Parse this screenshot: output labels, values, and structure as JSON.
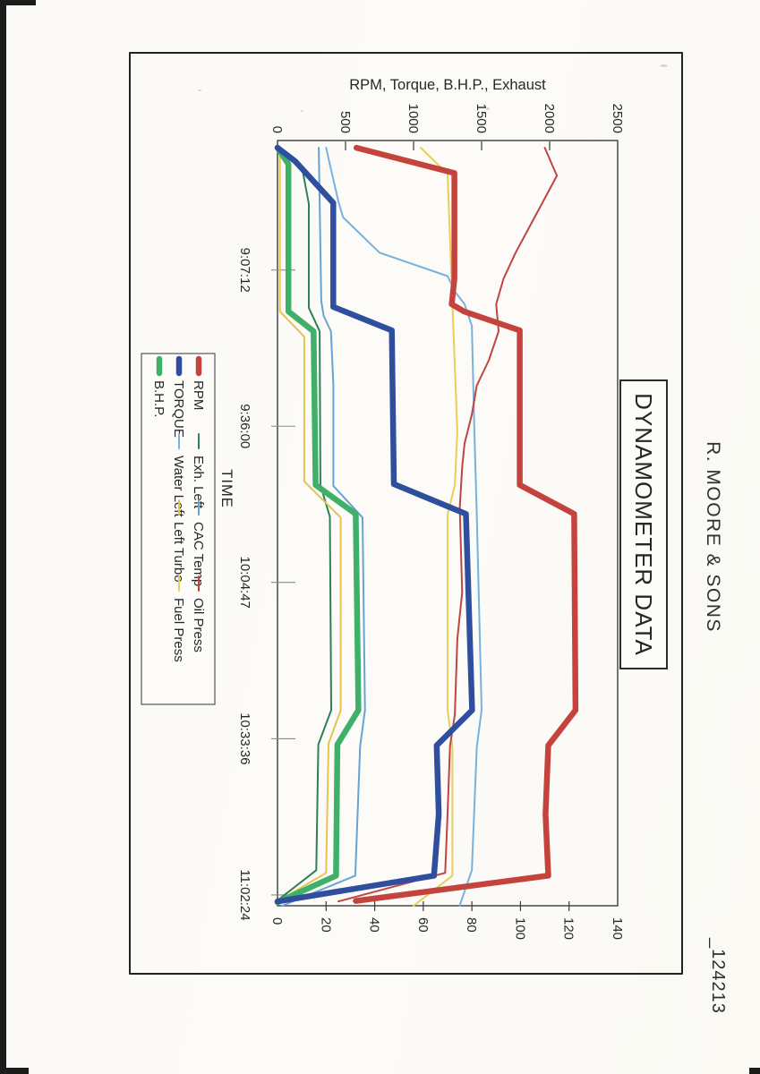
{
  "page": {
    "header": "R. MOORE & SONS",
    "doc_number": "_124213",
    "title": "DYNAMOMETER DATA"
  },
  "chart_data": {
    "type": "line",
    "title": "DYNAMOMETER DATA",
    "xlabel": "TIME",
    "ylabel_left": "RPM, Torque, B.H.P., Exhaust",
    "grid": false,
    "legend_position": "below",
    "x_domain": [
      31400,
      39863
    ],
    "x_ticks": [
      {
        "t": 32832,
        "label": "9:07:12"
      },
      {
        "t": 34560,
        "label": "9:36:00"
      },
      {
        "t": 36287,
        "label": "10:04:47"
      },
      {
        "t": 38016,
        "label": "10:33:36"
      },
      {
        "t": 39744,
        "label": "11:02:24"
      }
    ],
    "y_left": {
      "min": 0,
      "max": 2500,
      "ticks": [
        0,
        500,
        1000,
        1500,
        2000,
        2500
      ]
    },
    "y_right": {
      "min": 0,
      "max": 140,
      "ticks": [
        0,
        20,
        40,
        60,
        80,
        100,
        120,
        140
      ]
    },
    "legend_rows": [
      [
        "RPM",
        "Exh. Left",
        "CAC Temp",
        "Oil Press"
      ],
      [
        "TORQUE",
        "Water Left",
        "Left Turbo",
        "Fuel Press"
      ],
      [
        "B.H.P."
      ]
    ],
    "series": [
      {
        "label": "Exh. Left",
        "axis": "left",
        "color": "#2e8055",
        "width": 2,
        "points": [
          [
            31480,
            0
          ],
          [
            31700,
            180
          ],
          [
            32100,
            230
          ],
          [
            33250,
            230
          ],
          [
            33510,
            310
          ],
          [
            35210,
            315
          ],
          [
            35560,
            385
          ],
          [
            37700,
            395
          ],
          [
            38080,
            300
          ],
          [
            39470,
            285
          ],
          [
            39805,
            0
          ]
        ]
      },
      {
        "label": "CAC Temp",
        "axis": "right",
        "color": "#67a3d4",
        "width": 2,
        "points": [
          [
            31480,
            17
          ],
          [
            33180,
            18
          ],
          [
            33340,
            19
          ],
          [
            33510,
            22
          ],
          [
            34100,
            23
          ],
          [
            35220,
            23
          ],
          [
            35570,
            35
          ],
          [
            37700,
            36
          ],
          [
            38100,
            34
          ],
          [
            39530,
            32
          ],
          [
            39863,
            2
          ]
        ]
      },
      {
        "label": "Water Left",
        "axis": "right",
        "color": "#79b1da",
        "width": 2,
        "points": [
          [
            31480,
            20
          ],
          [
            32070,
            25
          ],
          [
            32250,
            27
          ],
          [
            32640,
            42
          ],
          [
            32900,
            70
          ],
          [
            33070,
            73
          ],
          [
            33210,
            77
          ],
          [
            33450,
            80
          ],
          [
            34600,
            81
          ],
          [
            35530,
            82
          ],
          [
            37700,
            84
          ],
          [
            38110,
            82
          ],
          [
            39470,
            80
          ],
          [
            39860,
            75
          ]
        ]
      },
      {
        "label": "Left Turbo",
        "axis": "right",
        "color": "#e5c44c",
        "width": 2,
        "points": [
          [
            31480,
            1
          ],
          [
            33290,
            1
          ],
          [
            33570,
            11
          ],
          [
            35170,
            11
          ],
          [
            35570,
            26
          ],
          [
            37700,
            26
          ],
          [
            38070,
            21
          ],
          [
            39500,
            20
          ],
          [
            39815,
            0
          ]
        ]
      },
      {
        "label": "Fuel Press",
        "axis": "right",
        "color": "#e9cf55",
        "width": 2,
        "points": [
          [
            31480,
            59
          ],
          [
            31770,
            70
          ],
          [
            33210,
            72
          ],
          [
            34620,
            74
          ],
          [
            35210,
            73
          ],
          [
            35540,
            70
          ],
          [
            37700,
            70
          ],
          [
            38110,
            72
          ],
          [
            39530,
            72
          ],
          [
            39863,
            56
          ]
        ]
      },
      {
        "label": "Oil Press",
        "axis": "right",
        "color": "#bf4540",
        "width": 2,
        "points": [
          [
            31480,
            110
          ],
          [
            31790,
            115
          ],
          [
            32640,
            98
          ],
          [
            32930,
            93
          ],
          [
            33210,
            90
          ],
          [
            33510,
            91
          ],
          [
            33830,
            87
          ],
          [
            34110,
            82
          ],
          [
            34430,
            80
          ],
          [
            34750,
            77
          ],
          [
            35010,
            76
          ],
          [
            35460,
            75
          ],
          [
            36400,
            76
          ],
          [
            36910,
            74
          ],
          [
            37750,
            73
          ],
          [
            38100,
            71
          ],
          [
            38840,
            70
          ],
          [
            39500,
            69
          ],
          [
            39815,
            25
          ]
        ]
      },
      {
        "label": "B.H.P.",
        "axis": "left",
        "color": "#3eb06a",
        "width": 6.5,
        "points": [
          [
            31480,
            0
          ],
          [
            31660,
            80
          ],
          [
            33290,
            80
          ],
          [
            33510,
            265
          ],
          [
            35210,
            280
          ],
          [
            35530,
            575
          ],
          [
            37700,
            595
          ],
          [
            38080,
            440
          ],
          [
            39530,
            430
          ],
          [
            39825,
            0
          ]
        ]
      },
      {
        "label": "TORQUE",
        "axis": "left",
        "color": "#2f4f9e",
        "width": 6.5,
        "points": [
          [
            31480,
            0
          ],
          [
            31630,
            130
          ],
          [
            32090,
            410
          ],
          [
            33240,
            410
          ],
          [
            33500,
            840
          ],
          [
            35200,
            855
          ],
          [
            35530,
            1385
          ],
          [
            37700,
            1430
          ],
          [
            38090,
            1170
          ],
          [
            38850,
            1185
          ],
          [
            39530,
            1150
          ],
          [
            39815,
            0
          ]
        ]
      },
      {
        "label": "RPM",
        "axis": "left",
        "color": "#c4433d",
        "width": 6.5,
        "points": [
          [
            31480,
            580
          ],
          [
            31760,
            1300
          ],
          [
            32930,
            1300
          ],
          [
            33210,
            1280
          ],
          [
            33290,
            1370
          ],
          [
            33500,
            1780
          ],
          [
            35210,
            1780
          ],
          [
            35530,
            2180
          ],
          [
            37700,
            2190
          ],
          [
            38090,
            1990
          ],
          [
            38850,
            1970
          ],
          [
            39530,
            1990
          ],
          [
            39810,
            575
          ]
        ]
      }
    ]
  }
}
